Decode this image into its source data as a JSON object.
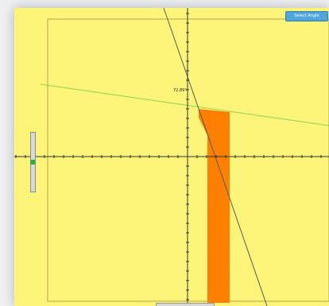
{
  "toolbar": {
    "button_label": "Select Angle"
  },
  "plot": {
    "angle_label": "72.89°"
  },
  "slider": {
    "level": 0.5
  },
  "colors": {
    "background": "#fdf57a",
    "region": "#ff7f00",
    "green_line": "#8fd14f",
    "steep_line": "#5a5a5a",
    "axis": "#333333",
    "grid_border": "#b8a545",
    "button": "#4fa6dc",
    "slider_thumb": "#22b14c"
  }
}
